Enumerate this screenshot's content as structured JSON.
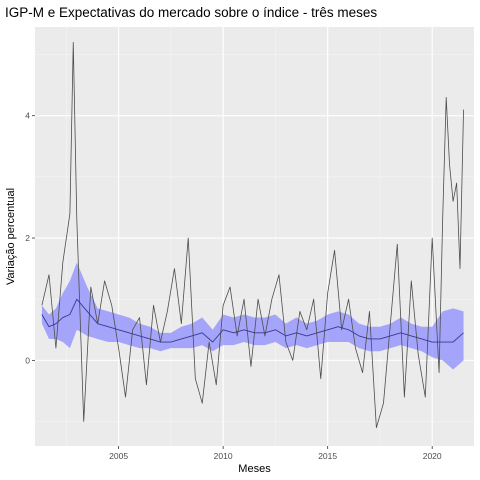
{
  "chart_data": {
    "type": "line",
    "title": "IGP-M e Expectativas do mercado sobre o índice - três meses",
    "xlabel": "Meses",
    "ylabel": "Variação percentual",
    "xlim": [
      2001.0,
      2022.0
    ],
    "ylim": [
      -1.4,
      5.45
    ],
    "x_ticks": [
      2005,
      2010,
      2015,
      2020
    ],
    "x_tick_labels": [
      "2005",
      "2010",
      "2015",
      "2020"
    ],
    "y_ticks": [
      0,
      2,
      4
    ],
    "y_tick_labels": [
      "0",
      "2",
      "4"
    ],
    "grid": true,
    "legend": "none",
    "colors": {
      "panel": "#ebebeb",
      "grid_major": "#ffffff",
      "grid_minor": "#f5f5f5",
      "actual_line": "#4d4d4d",
      "expectation_line": "#3a3a8c",
      "band": "#8c8cff"
    },
    "series": [
      {
        "role": "actual",
        "x": [
          2001.33,
          2001.67,
          2002.0,
          2002.33,
          2002.67,
          2002.83,
          2003.0,
          2003.33,
          2003.67,
          2004.0,
          2004.33,
          2004.67,
          2005.0,
          2005.33,
          2005.67,
          2006.0,
          2006.33,
          2006.67,
          2007.0,
          2007.33,
          2007.67,
          2008.0,
          2008.33,
          2008.67,
          2009.0,
          2009.33,
          2009.67,
          2010.0,
          2010.33,
          2010.67,
          2011.0,
          2011.33,
          2011.67,
          2012.0,
          2012.33,
          2012.67,
          2013.0,
          2013.33,
          2013.67,
          2014.0,
          2014.33,
          2014.67,
          2015.0,
          2015.33,
          2015.67,
          2016.0,
          2016.33,
          2016.67,
          2017.0,
          2017.33,
          2017.67,
          2018.0,
          2018.33,
          2018.67,
          2019.0,
          2019.33,
          2019.67,
          2020.0,
          2020.33,
          2020.5,
          2020.67,
          2020.83,
          2021.0,
          2021.17,
          2021.33,
          2021.5
        ],
        "y": [
          0.9,
          1.4,
          0.2,
          1.6,
          2.4,
          5.2,
          2.3,
          -1.0,
          1.2,
          0.6,
          1.3,
          0.9,
          0.2,
          -0.6,
          0.5,
          0.7,
          -0.4,
          0.9,
          0.3,
          0.8,
          1.5,
          0.6,
          2.0,
          -0.3,
          -0.7,
          0.3,
          -0.4,
          0.9,
          1.2,
          0.4,
          1.0,
          -0.1,
          1.0,
          0.4,
          1.0,
          1.4,
          0.3,
          0.0,
          0.8,
          0.5,
          1.0,
          -0.3,
          1.1,
          1.8,
          0.5,
          1.0,
          0.2,
          -0.2,
          0.8,
          -1.1,
          -0.7,
          0.6,
          1.9,
          -0.6,
          1.3,
          0.1,
          -0.6,
          2.0,
          -0.2,
          2.3,
          4.3,
          3.2,
          2.6,
          2.9,
          1.5,
          4.1
        ],
        "name": ""
      },
      {
        "role": "expectation",
        "x": [
          2001.33,
          2001.67,
          2002.0,
          2002.33,
          2002.67,
          2003.0,
          2003.5,
          2004.0,
          2004.5,
          2005.0,
          2005.5,
          2006.0,
          2006.5,
          2007.0,
          2007.5,
          2008.0,
          2008.5,
          2009.0,
          2009.5,
          2010.0,
          2010.5,
          2011.0,
          2011.5,
          2012.0,
          2012.5,
          2013.0,
          2013.5,
          2014.0,
          2014.5,
          2015.0,
          2015.5,
          2016.0,
          2016.5,
          2017.0,
          2017.5,
          2018.0,
          2018.5,
          2019.0,
          2019.5,
          2020.0,
          2020.5,
          2021.0,
          2021.5
        ],
        "y": [
          0.75,
          0.55,
          0.6,
          0.7,
          0.75,
          1.0,
          0.8,
          0.6,
          0.55,
          0.5,
          0.45,
          0.4,
          0.35,
          0.3,
          0.3,
          0.35,
          0.4,
          0.45,
          0.3,
          0.5,
          0.45,
          0.5,
          0.45,
          0.45,
          0.5,
          0.4,
          0.45,
          0.4,
          0.45,
          0.5,
          0.55,
          0.5,
          0.4,
          0.35,
          0.35,
          0.4,
          0.45,
          0.4,
          0.35,
          0.3,
          0.3,
          0.3,
          0.45
        ],
        "band_low": [
          0.6,
          0.35,
          0.35,
          0.3,
          0.2,
          0.5,
          0.4,
          0.35,
          0.3,
          0.3,
          0.25,
          0.2,
          0.2,
          0.15,
          0.2,
          0.2,
          0.2,
          0.25,
          0.15,
          0.25,
          0.25,
          0.3,
          0.25,
          0.25,
          0.3,
          0.2,
          0.25,
          0.2,
          0.25,
          0.3,
          0.3,
          0.3,
          0.2,
          0.15,
          0.15,
          0.2,
          0.25,
          0.2,
          0.15,
          0.05,
          0.0,
          -0.15,
          0.0
        ],
        "band_high": [
          0.9,
          0.75,
          0.85,
          1.1,
          1.3,
          1.6,
          1.2,
          0.85,
          0.8,
          0.75,
          0.7,
          0.6,
          0.55,
          0.45,
          0.45,
          0.55,
          0.6,
          0.7,
          0.5,
          0.75,
          0.7,
          0.75,
          0.7,
          0.7,
          0.75,
          0.6,
          0.7,
          0.6,
          0.65,
          0.75,
          0.8,
          0.75,
          0.6,
          0.55,
          0.55,
          0.6,
          0.7,
          0.6,
          0.55,
          0.55,
          0.8,
          0.85,
          0.8
        ],
        "name": ""
      }
    ]
  }
}
